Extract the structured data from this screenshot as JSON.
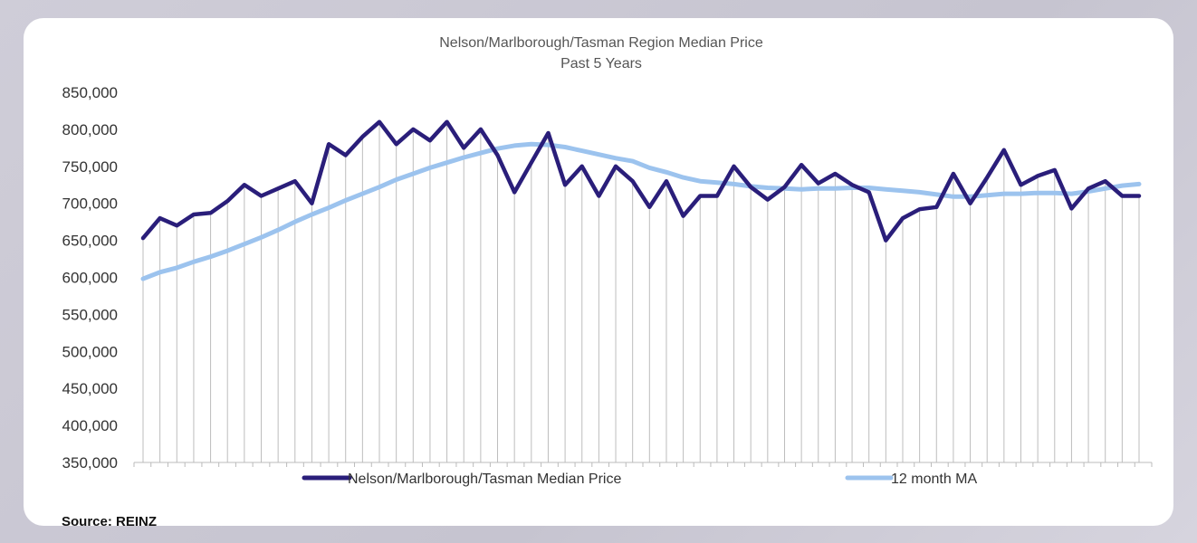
{
  "source_label": "Source: REINZ",
  "colors": {
    "median_line": "#2a1e7a",
    "ma_line": "#9cc3ee",
    "drop_lines": "#bdbdbd",
    "text": "#333333"
  },
  "chart_data": {
    "type": "line",
    "title": "Nelson/Marlborough/Tasman Region Median Price",
    "subtitle": "Past 5 Years",
    "xlabel": "",
    "ylabel": "",
    "ylim": [
      350000,
      850000
    ],
    "yticks": [
      850000,
      800000,
      750000,
      700000,
      650000,
      600000,
      550000,
      500000,
      450000,
      400000,
      350000
    ],
    "ytick_labels": [
      "850,000",
      "800,000",
      "750,000",
      "700,000",
      "650,000",
      "600,000",
      "550,000",
      "500,000",
      "450,000",
      "400,000",
      "350,000"
    ],
    "grid": "vertical drop lines",
    "legend": "bottom",
    "series": [
      {
        "name": "Nelson/Marlborough/Tasman Median Price",
        "values": [
          653000,
          680000,
          670000,
          685000,
          687000,
          703000,
          725000,
          710000,
          720000,
          730000,
          700000,
          780000,
          765000,
          790000,
          810000,
          780000,
          800000,
          785000,
          810000,
          775000,
          800000,
          765000,
          715000,
          755000,
          795000,
          725000,
          750000,
          710000,
          750000,
          730000,
          695000,
          730000,
          683000,
          710000,
          710000,
          750000,
          722000,
          705000,
          722000,
          752000,
          727000,
          740000,
          725000,
          715000,
          650000,
          680000,
          692000,
          695000,
          740000,
          700000,
          735000,
          772000,
          725000,
          737000,
          745000,
          693000,
          720000,
          730000,
          710000,
          710000
        ]
      },
      {
        "name": "12 month MA",
        "values": [
          598000,
          607000,
          613000,
          621000,
          628000,
          636000,
          645000,
          654000,
          664000,
          675000,
          685000,
          694000,
          704000,
          713000,
          722000,
          732000,
          740000,
          748000,
          755000,
          762000,
          768000,
          774000,
          778000,
          780000,
          779000,
          776000,
          771000,
          766000,
          761000,
          757000,
          748000,
          742000,
          735000,
          730000,
          728000,
          726000,
          723000,
          721000,
          720000,
          719000,
          720000,
          720000,
          721000,
          721000,
          719000,
          717000,
          715000,
          712000,
          709000,
          709000,
          711000,
          713000,
          713000,
          714000,
          714000,
          713000,
          716000,
          720000,
          724000,
          726000
        ]
      }
    ]
  }
}
